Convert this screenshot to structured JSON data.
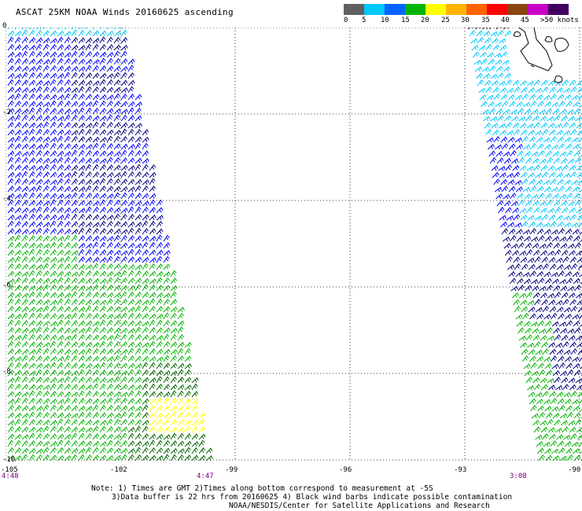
{
  "title": "ASCAT 25KM NOAA Winds 20160625 ascending",
  "legend": {
    "labels": [
      "0",
      "5",
      "10",
      "15",
      "20",
      "25",
      "30",
      "35",
      "40",
      "45",
      ">50 knots"
    ],
    "colors": [
      "#606060",
      "#00c8ff",
      "#0064ff",
      "#00b400",
      "#ffff00",
      "#ffb400",
      "#ff6400",
      "#ff0000",
      "#8b4513",
      "#c800c8",
      "#400060"
    ]
  },
  "map": {
    "lat_labels": [
      "0",
      "-2",
      "-4",
      "-6",
      "-8",
      "-10"
    ],
    "lon_labels": [
      "-105",
      "-102",
      "-99",
      "-96",
      "-93",
      "-90"
    ],
    "time_labels": [
      "4:48",
      "4:47",
      "3:08"
    ],
    "wind_barb_colors": {
      "light_blue": "#00c8ff",
      "blue": "#0000ff",
      "navy": "#000080",
      "green": "#00b400",
      "dark_green": "#006400",
      "yellow": "#ffff00",
      "black": "#000000"
    }
  },
  "notes": {
    "line1": "Note: 1) Times are GMT 2)Times along bottom correspond to measurement at -5S",
    "line2": "3)Data buffer is 22 hrs from 20160625 4) Black wind barbs indicate possible contamination",
    "line3": "NOAA/NESDIS/Center for Satellite Applications and Research"
  }
}
